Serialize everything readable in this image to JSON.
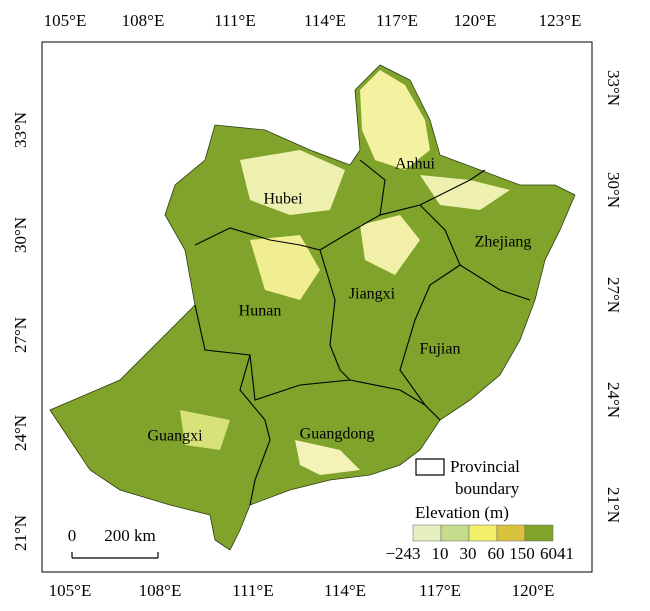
{
  "axes": {
    "top_ticks": [
      "105°E",
      "108°E",
      "111°E",
      "114°E",
      "117°E",
      "120°E",
      "123°E"
    ],
    "bottom_ticks": [
      "105°E",
      "108°E",
      "111°E",
      "114°E",
      "117°E",
      "120°E"
    ],
    "left_ticks": [
      "33°N",
      "30°N",
      "27°N",
      "24°N",
      "21°N"
    ],
    "right_ticks": [
      "33°N",
      "30°N",
      "27°N",
      "24°N",
      "21°N"
    ]
  },
  "provinces": [
    "Anhui",
    "Hubei",
    "Zhejiang",
    "Jiangxi",
    "Hunan",
    "Fujian",
    "Guangxi",
    "Guangdong"
  ],
  "legend": {
    "boundary_label": [
      "Provincial",
      "boundary"
    ],
    "title": "Elevation (m)",
    "breaks": [
      "−243",
      "10",
      "30",
      "60",
      "150",
      "6041"
    ]
  },
  "scale_bar": {
    "zero": "0",
    "distance": "200 km"
  }
}
